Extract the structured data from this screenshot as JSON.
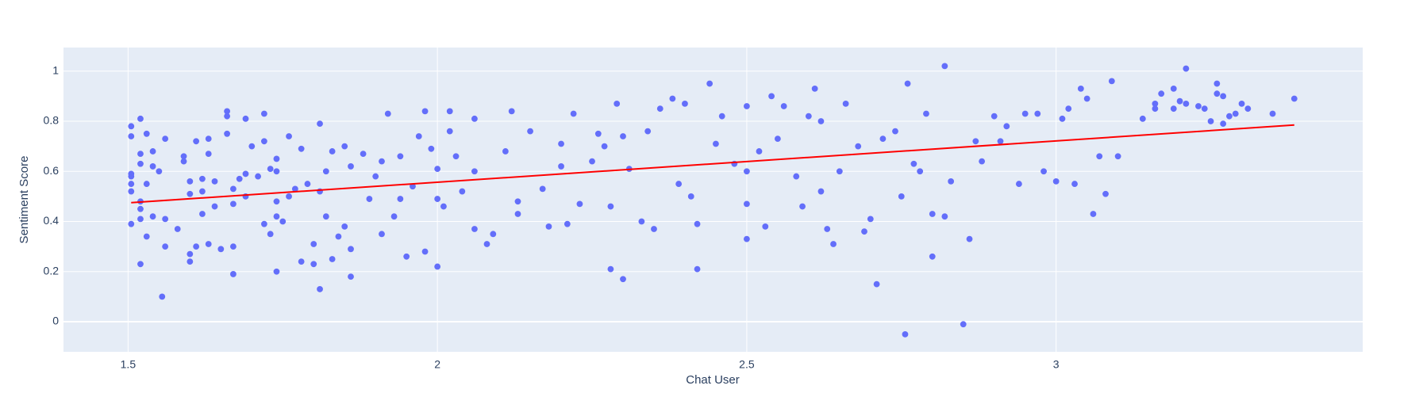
{
  "chart_data": {
    "type": "scatter",
    "x_label": "Chat User",
    "y_label": "Sentiment Score",
    "xlim": [
      1.3956,
      3.4956
    ],
    "ylim": [
      -0.12,
      1.094
    ],
    "xticks": [
      1.5,
      2,
      2.5,
      3
    ],
    "yticks": [
      0,
      0.2,
      0.4,
      0.6,
      0.8,
      1
    ],
    "grid": true,
    "series": [
      {
        "mode": "markers",
        "color": "#636efa",
        "x": [
          1.505,
          1.505,
          1.505,
          1.505,
          1.505,
          1.505,
          1.505,
          1.52,
          1.52,
          1.52,
          1.52,
          1.52,
          1.52,
          1.52,
          1.53,
          1.53,
          1.53,
          1.54,
          1.54,
          1.54,
          1.55,
          1.555,
          1.56,
          1.56,
          1.56,
          1.58,
          1.59,
          1.59,
          1.6,
          1.6,
          1.6,
          1.6,
          1.61,
          1.61,
          1.62,
          1.62,
          1.62,
          1.63,
          1.63,
          1.63,
          1.64,
          1.64,
          1.65,
          1.66,
          1.66,
          1.66,
          1.67,
          1.67,
          1.67,
          1.67,
          1.68,
          1.69,
          1.69,
          1.69,
          1.7,
          1.71,
          1.72,
          1.72,
          1.72,
          1.73,
          1.73,
          1.74,
          1.74,
          1.74,
          1.74,
          1.74,
          1.75,
          1.76,
          1.76,
          1.77,
          1.78,
          1.78,
          1.79,
          1.8,
          1.8,
          1.81,
          1.81,
          1.81,
          1.82,
          1.82,
          1.83,
          1.83,
          1.84,
          1.85,
          1.85,
          1.86,
          1.86,
          1.86,
          1.88,
          1.89,
          1.9,
          1.91,
          1.91,
          1.92,
          1.93,
          1.94,
          1.94,
          1.95,
          1.96,
          1.97,
          1.98,
          1.98,
          1.99,
          2,
          2,
          2,
          2.01,
          2.02,
          2.02,
          2.03,
          2.04,
          2.06,
          2.06,
          2.06,
          2.08,
          2.09,
          2.11,
          2.12,
          2.13,
          2.13,
          2.15,
          2.17,
          2.18,
          2.2,
          2.2,
          2.21,
          2.22,
          2.23,
          2.25,
          2.26,
          2.27,
          2.28,
          2.28,
          2.29,
          2.3,
          2.3,
          2.31,
          2.33,
          2.34,
          2.35,
          2.36,
          2.38,
          2.39,
          2.4,
          2.41,
          2.42,
          2.42,
          2.44,
          2.45,
          2.46,
          2.48,
          2.5,
          2.5,
          2.5,
          2.5,
          2.52,
          2.53,
          2.54,
          2.55,
          2.56,
          2.58,
          2.59,
          2.6,
          2.61,
          2.62,
          2.62,
          2.63,
          2.64,
          2.65,
          2.66,
          2.68,
          2.69,
          2.7,
          2.71,
          2.72,
          2.74,
          2.75,
          2.76,
          2.756,
          2.77,
          2.78,
          2.79,
          2.8,
          2.8,
          2.82,
          2.82,
          2.83,
          2.85,
          2.86,
          2.87,
          2.88,
          2.9,
          2.91,
          2.92,
          2.94,
          2.95,
          2.97,
          2.98,
          3,
          3.01,
          3.02,
          3.03,
          3.04,
          3.05,
          3.06,
          3.07,
          3.08,
          3.1,
          3.09,
          3.14,
          3.16,
          3.16,
          3.17,
          3.19,
          3.19,
          3.2,
          3.21,
          3.21,
          3.23,
          3.24,
          3.25,
          3.26,
          3.26,
          3.27,
          3.27,
          3.28,
          3.29,
          3.3,
          3.31,
          3.35,
          3.385
        ],
        "values": [
          0.78,
          0.74,
          0.59,
          0.58,
          0.55,
          0.52,
          0.39,
          0.81,
          0.67,
          0.63,
          0.48,
          0.45,
          0.41,
          0.23,
          0.75,
          0.55,
          0.34,
          0.68,
          0.62,
          0.42,
          0.6,
          0.1,
          0.73,
          0.41,
          0.3,
          0.37,
          0.66,
          0.64,
          0.56,
          0.51,
          0.27,
          0.24,
          0.72,
          0.3,
          0.57,
          0.52,
          0.43,
          0.73,
          0.67,
          0.31,
          0.56,
          0.46,
          0.29,
          0.84,
          0.82,
          0.75,
          0.53,
          0.47,
          0.3,
          0.19,
          0.57,
          0.81,
          0.59,
          0.5,
          0.7,
          0.58,
          0.83,
          0.72,
          0.39,
          0.61,
          0.35,
          0.65,
          0.6,
          0.48,
          0.42,
          0.2,
          0.4,
          0.74,
          0.5,
          0.53,
          0.69,
          0.24,
          0.55,
          0.23,
          0.31,
          0.79,
          0.52,
          0.13,
          0.6,
          0.42,
          0.68,
          0.25,
          0.34,
          0.38,
          0.7,
          0.62,
          0.29,
          0.18,
          0.67,
          0.49,
          0.58,
          0.35,
          0.64,
          0.83,
          0.42,
          0.49,
          0.66,
          0.26,
          0.54,
          0.74,
          0.28,
          0.84,
          0.69,
          0.61,
          0.49,
          0.22,
          0.46,
          0.84,
          0.76,
          0.66,
          0.52,
          0.81,
          0.6,
          0.37,
          0.31,
          0.35,
          0.68,
          0.84,
          0.48,
          0.43,
          0.76,
          0.53,
          0.38,
          0.71,
          0.62,
          0.39,
          0.83,
          0.47,
          0.64,
          0.75,
          0.7,
          0.46,
          0.21,
          0.87,
          0.17,
          0.74,
          0.61,
          0.4,
          0.76,
          0.37,
          0.85,
          0.89,
          0.55,
          0.87,
          0.5,
          0.21,
          0.39,
          0.95,
          0.71,
          0.82,
          0.63,
          0.86,
          0.6,
          0.47,
          0.33,
          0.68,
          0.38,
          0.9,
          0.73,
          0.86,
          0.58,
          0.46,
          0.82,
          0.93,
          0.8,
          0.52,
          0.37,
          0.31,
          0.6,
          0.87,
          0.7,
          0.36,
          0.41,
          0.15,
          0.73,
          0.76,
          0.5,
          0.95,
          -0.05,
          0.63,
          0.6,
          0.83,
          0.26,
          0.43,
          1.02,
          0.42,
          0.56,
          -0.01,
          0.33,
          0.72,
          0.64,
          0.82,
          0.72,
          0.78,
          0.55,
          0.83,
          0.83,
          0.6,
          0.56,
          0.81,
          0.85,
          0.55,
          0.93,
          0.89,
          0.43,
          0.66,
          0.51,
          0.66,
          0.96,
          0.81,
          0.87,
          0.85,
          0.91,
          0.93,
          0.85,
          0.88,
          1.01,
          0.87,
          0.86,
          0.85,
          0.8,
          0.91,
          0.95,
          0.9,
          0.79,
          0.82,
          0.83,
          0.87,
          0.85,
          0.83,
          0.89
        ]
      },
      {
        "mode": "lines",
        "color": "#ff0000",
        "x": [
          1.505,
          3.385
        ],
        "values": [
          0.475,
          0.785
        ]
      }
    ]
  }
}
